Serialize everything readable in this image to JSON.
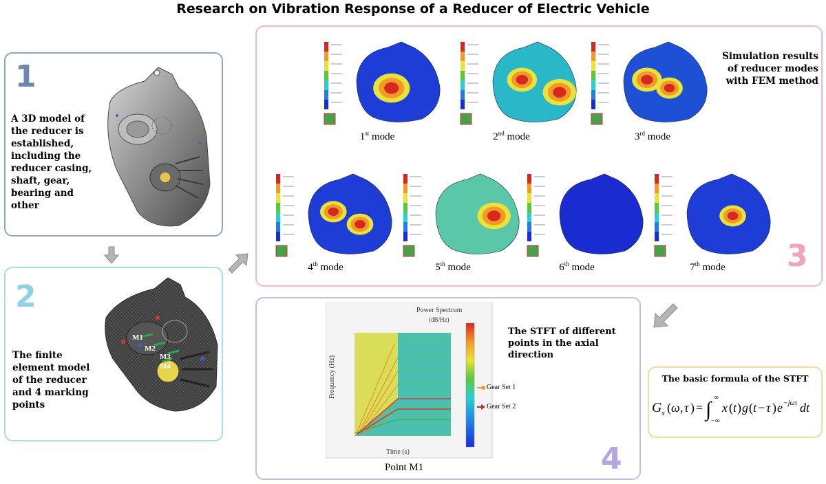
{
  "title": "Research on Vibration Response of a Reducer of Electric Vehicle",
  "panel1": {
    "number": "1",
    "text_lines": [
      "A 3D model of",
      "the reducer is",
      "established,",
      "including the",
      "reducer casing,",
      "shaft, gear,",
      "bearing and",
      "other"
    ]
  },
  "panel2": {
    "number": "2",
    "text_lines": [
      "The finite",
      "element model",
      "of the reducer",
      "and 4 marking",
      "points"
    ],
    "markers": [
      "M1",
      "M2",
      "M3",
      "M4"
    ]
  },
  "panel3": {
    "number": "3",
    "caption_lines": [
      "Simulation results",
      "of reducer modes",
      "with FEM method"
    ],
    "modes": [
      {
        "n": "1",
        "suffix": "st",
        "word": "mode"
      },
      {
        "n": "2",
        "suffix": "nd",
        "word": "mode"
      },
      {
        "n": "3",
        "suffix": "rd",
        "word": "mode"
      },
      {
        "n": "4",
        "suffix": "th",
        "word": "mode"
      },
      {
        "n": "5",
        "suffix": "th",
        "word": "mode"
      },
      {
        "n": "6",
        "suffix": "th",
        "word": "mode"
      },
      {
        "n": "7",
        "suffix": "th",
        "word": "mode"
      }
    ]
  },
  "panel4": {
    "number": "4",
    "caption_lines": [
      "The STFT of different",
      "points in the axial",
      "direction"
    ],
    "spectrum_title": "Power Spectrum",
    "spectrum_unit": "(dB/Hz)",
    "ylabel": "Frequency (Hz)",
    "xlabel": "Time (s)",
    "point_label": "Point M1",
    "gear_set_1": "Gear Set 1",
    "gear_set_2": "Gear Set 2"
  },
  "panel5": {
    "title": "The basic formula of the STFT"
  },
  "colors": {
    "panel1_border": "#8fa6c6",
    "panel1_number": "#6e86ad",
    "panel2_border": "#a9dcea",
    "panel2_number": "#8fd0e4",
    "panel3_border": "#f0b8c8",
    "panel3_number": "#f2a3ba",
    "panel4_border": "#c8bce6",
    "panel4_number": "#b5a6e2",
    "panel5_border": "#f1dc9c",
    "arrow": "#b5b5b5"
  }
}
